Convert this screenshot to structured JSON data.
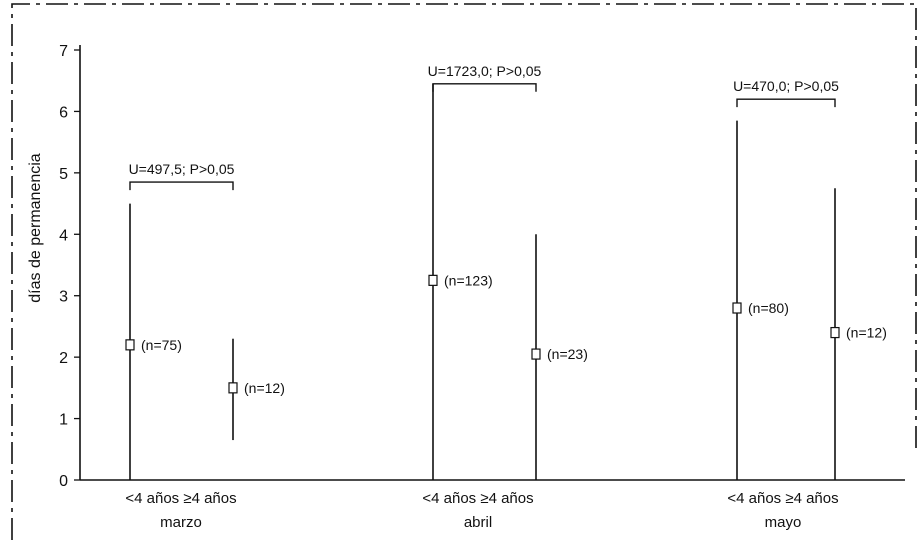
{
  "chart_data": {
    "type": "errorbar",
    "ylabel": "días de permanencia",
    "ylim": [
      0,
      7
    ],
    "yticks": [
      "0",
      "1",
      "2",
      "3",
      "4",
      "5",
      "6",
      "7"
    ],
    "groups": [
      {
        "month": "marzo",
        "test": "U=497,5; P>0,05",
        "bracket_y": 4.85,
        "bars": [
          {
            "category": "<4 años",
            "center": 2.2,
            "low": 0.0,
            "high": 4.5,
            "n_label": "(n=75)"
          },
          {
            "category": "≥4 años",
            "center": 1.5,
            "low": 0.65,
            "high": 2.3,
            "n_label": "(n=12)"
          }
        ]
      },
      {
        "month": "abril",
        "test": "U=1723,0; P>0,05",
        "bracket_y": 6.45,
        "bars": [
          {
            "category": "<4 años",
            "center": 3.25,
            "low": 0.0,
            "high": 6.45,
            "n_label": "(n=123)"
          },
          {
            "category": "≥4 años",
            "center": 2.05,
            "low": 0.0,
            "high": 4.0,
            "n_label": "(n=23)"
          }
        ]
      },
      {
        "month": "mayo",
        "test": "U=470,0; P>0,05",
        "bracket_y": 6.2,
        "bars": [
          {
            "category": "<4 años",
            "center": 2.8,
            "low": 0.0,
            "high": 5.85,
            "n_label": "(n=80)"
          },
          {
            "category": "≥4 años",
            "center": 2.4,
            "low": 0.0,
            "high": 4.75,
            "n_label": "(n=12)"
          }
        ]
      }
    ]
  }
}
